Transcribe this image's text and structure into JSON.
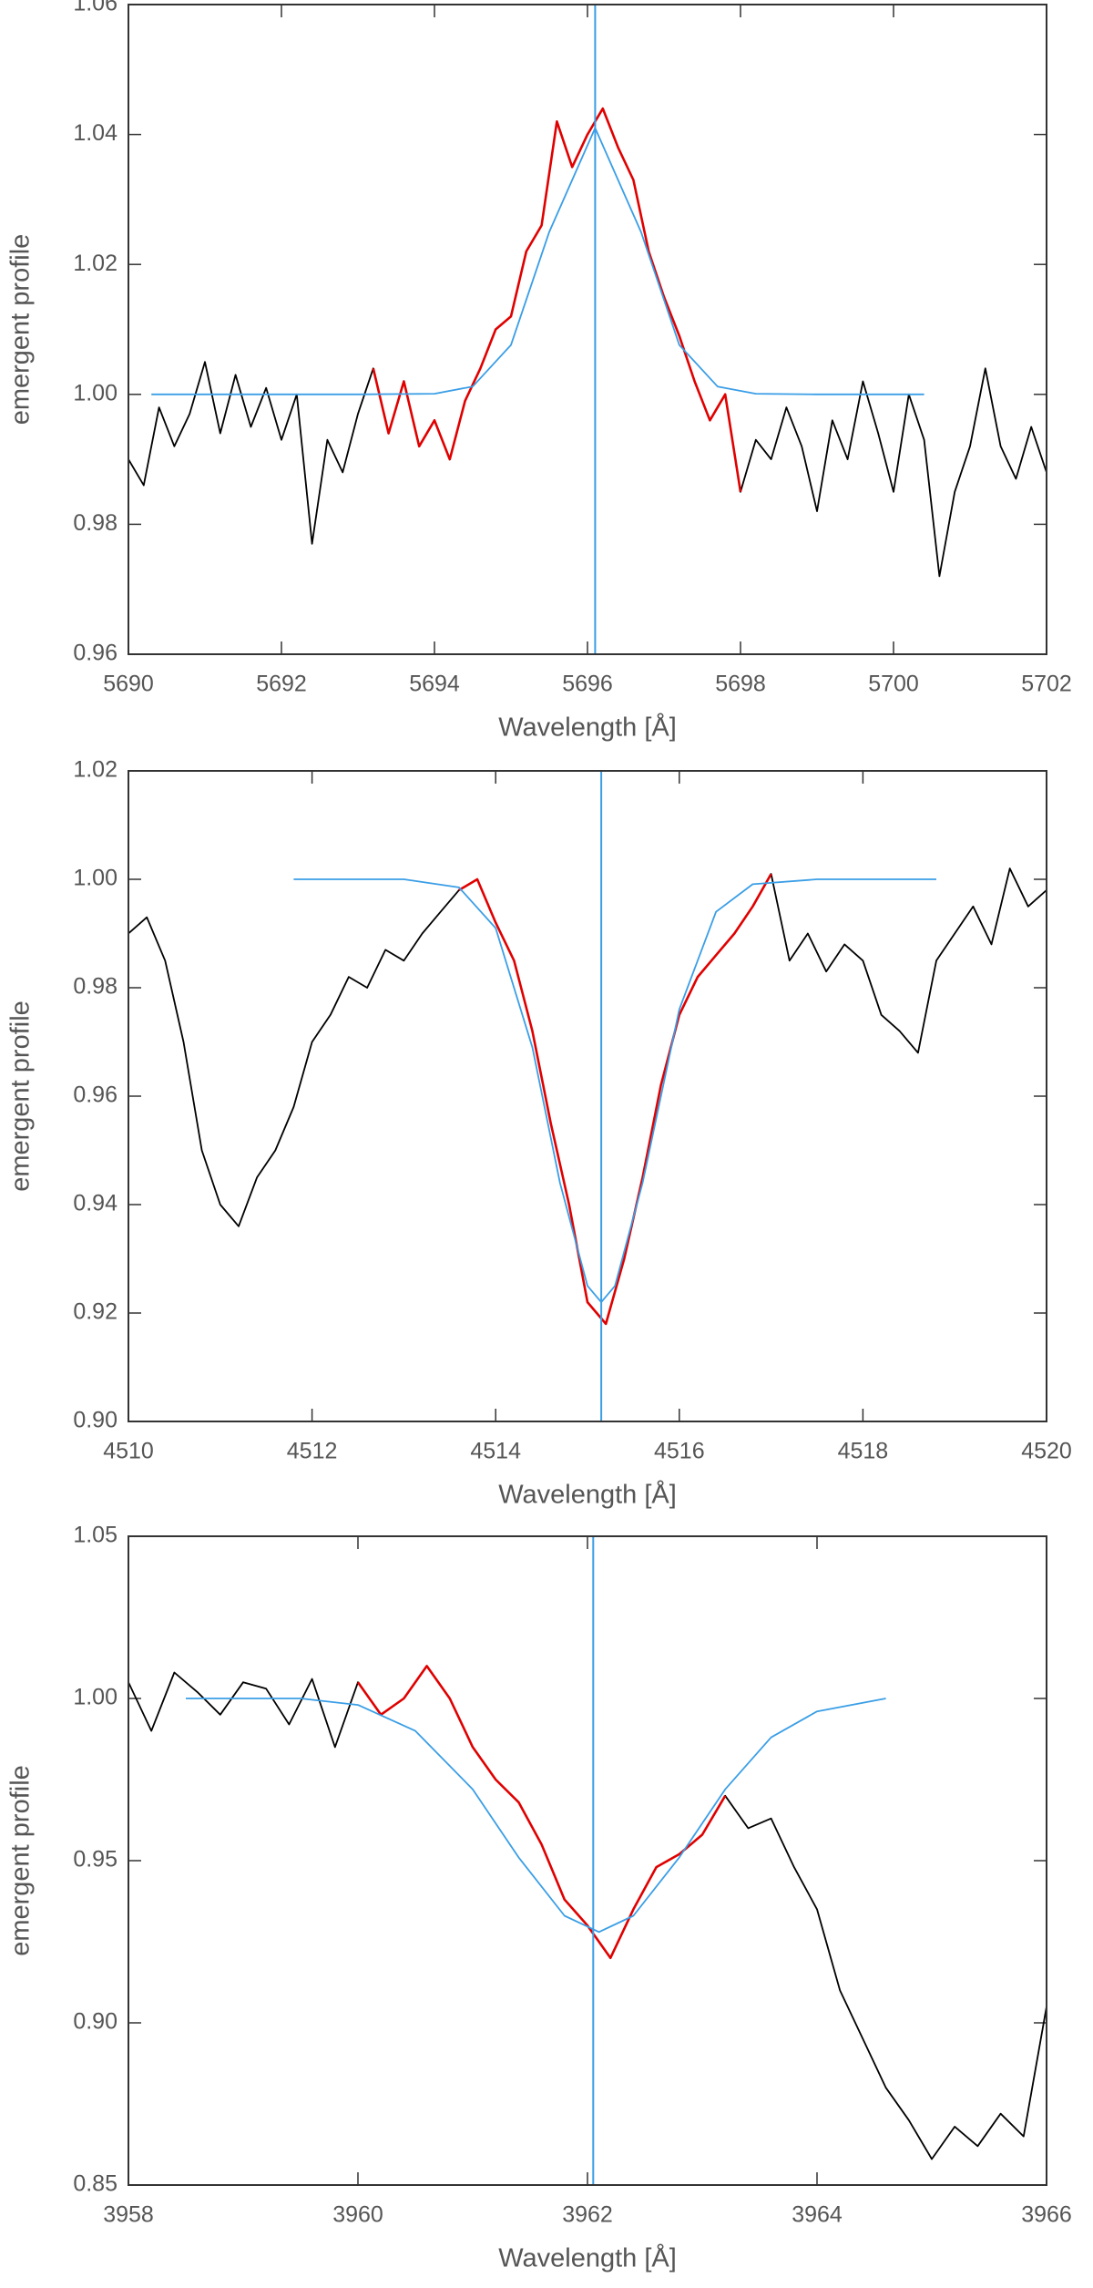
{
  "chart_data": [
    {
      "type": "line",
      "xlabel": "Wavelength [Å]",
      "ylabel": "emergent profile",
      "xlim": [
        5690,
        5702
      ],
      "xticks": [
        5690,
        5692,
        5694,
        5696,
        5698,
        5700,
        5702
      ],
      "ylim": [
        0.96,
        1.06
      ],
      "yticks": [
        0.96,
        0.98,
        {
          "value": 1.0,
          "label": "1.00"
        },
        1.02,
        1.04,
        1.06
      ],
      "vline": {
        "x": 5696.1,
        "color": "#3a9ee6"
      },
      "series": [
        {
          "color": "#000000",
          "x": [
            5690.0,
            5690.2,
            5690.4,
            5690.6,
            5690.8,
            5691.0,
            5691.2,
            5691.4,
            5691.6,
            5691.8,
            5692.0,
            5692.2,
            5692.4,
            5692.6,
            5692.8,
            5693.0,
            5693.2,
            5693.4,
            5693.6,
            5693.8,
            5694.0,
            5694.2,
            5694.4,
            5694.6,
            5694.8,
            5695.0,
            5695.2,
            5695.4,
            5695.6,
            5695.8,
            5696.0,
            5696.2,
            5696.4,
            5696.6,
            5696.8,
            5697.0,
            5697.2,
            5697.4,
            5697.6,
            5697.8,
            5698.0,
            5698.2,
            5698.4,
            5698.6,
            5698.8,
            5699.0,
            5699.2,
            5699.4,
            5699.6,
            5699.8,
            5700.0,
            5700.2,
            5700.4,
            5700.6,
            5700.8,
            5701.0,
            5701.2,
            5701.4,
            5701.6,
            5701.8,
            5702.0
          ],
          "values": [
            0.99,
            0.986,
            0.998,
            0.992,
            0.997,
            1.005,
            0.994,
            1.003,
            0.995,
            1.001,
            0.993,
            1.0,
            0.977,
            0.993,
            0.988,
            0.997,
            1.004,
            0.994,
            1.002,
            0.992,
            0.996,
            0.99,
            0.999,
            1.004,
            1.01,
            1.012,
            1.022,
            1.026,
            1.042,
            1.035,
            1.04,
            1.044,
            1.038,
            1.033,
            1.022,
            1.015,
            1.009,
            1.002,
            0.996,
            1.0,
            0.985,
            0.993,
            0.99,
            0.998,
            0.992,
            0.982,
            0.996,
            0.99,
            1.002,
            0.994,
            0.985,
            1.0,
            0.993,
            0.972,
            0.985,
            0.992,
            1.004,
            0.992,
            0.987,
            0.995,
            0.988
          ]
        },
        {
          "color": "#e00000",
          "x": [
            5693.2,
            5693.4,
            5693.6,
            5693.8,
            5694.0,
            5694.2,
            5694.4,
            5694.6,
            5694.8,
            5695.0,
            5695.2,
            5695.4,
            5695.6,
            5695.8,
            5696.0,
            5696.2,
            5696.4,
            5696.6,
            5696.8,
            5697.0,
            5697.2,
            5697.4,
            5697.6,
            5697.8,
            5698.0
          ],
          "values": [
            1.004,
            0.994,
            1.002,
            0.992,
            0.996,
            0.99,
            0.999,
            1.004,
            1.01,
            1.012,
            1.022,
            1.026,
            1.042,
            1.035,
            1.04,
            1.044,
            1.038,
            1.033,
            1.022,
            1.015,
            1.009,
            1.002,
            0.996,
            1.0,
            0.985
          ]
        },
        {
          "color": "#3a9ee6",
          "x": [
            5690.3,
            5692.0,
            5693.0,
            5694.0,
            5694.5,
            5695.0,
            5695.5,
            5696.1,
            5696.7,
            5697.2,
            5697.7,
            5698.2,
            5699.0,
            5700.4
          ],
          "values": [
            1.0,
            1.0,
            1.0,
            1.0001,
            1.0012,
            1.0076,
            1.025,
            1.041,
            1.025,
            1.0076,
            1.0012,
            1.0001,
            1.0,
            1.0
          ]
        }
      ]
    },
    {
      "type": "line",
      "xlabel": "Wavelength [Å]",
      "ylabel": "emergent profile",
      "xlim": [
        4510,
        4520
      ],
      "xticks": [
        4510,
        4512,
        4514,
        4516,
        4518,
        4520
      ],
      "ylim": [
        0.9,
        1.02
      ],
      "yticks": [
        {
          "value": 0.9,
          "label": "0.90"
        },
        0.92,
        0.94,
        0.96,
        0.98,
        {
          "value": 1.0,
          "label": "1.00"
        },
        1.02
      ],
      "vline": {
        "x": 4515.15,
        "color": "#3a9ee6"
      },
      "series": [
        {
          "color": "#000000",
          "x": [
            4510.0,
            4510.2,
            4510.4,
            4510.6,
            4510.8,
            4511.0,
            4511.2,
            4511.4,
            4511.6,
            4511.8,
            4512.0,
            4512.2,
            4512.4,
            4512.6,
            4512.8,
            4513.0,
            4513.2,
            4513.4,
            4513.6,
            4513.8,
            4514.0,
            4514.2,
            4514.4,
            4514.6,
            4514.8,
            4515.0,
            4515.2,
            4515.4,
            4515.6,
            4515.8,
            4516.0,
            4516.2,
            4516.4,
            4516.6,
            4516.8,
            4517.0,
            4517.2,
            4517.4,
            4517.6,
            4517.8,
            4518.0,
            4518.2,
            4518.4,
            4518.6,
            4518.8,
            4519.0,
            4519.2,
            4519.4,
            4519.6,
            4519.8,
            4520.0
          ],
          "values": [
            0.99,
            0.993,
            0.985,
            0.97,
            0.95,
            0.94,
            0.936,
            0.945,
            0.95,
            0.958,
            0.97,
            0.975,
            0.982,
            0.98,
            0.987,
            0.985,
            0.99,
            0.994,
            0.998,
            1.0,
            0.992,
            0.985,
            0.972,
            0.955,
            0.94,
            0.922,
            0.918,
            0.93,
            0.945,
            0.962,
            0.975,
            0.982,
            0.986,
            0.99,
            0.995,
            1.001,
            0.985,
            0.99,
            0.983,
            0.988,
            0.985,
            0.975,
            0.972,
            0.968,
            0.985,
            0.99,
            0.995,
            0.988,
            1.002,
            0.995,
            0.998
          ]
        },
        {
          "color": "#e00000",
          "x": [
            4513.6,
            4513.8,
            4514.0,
            4514.2,
            4514.4,
            4514.6,
            4514.8,
            4515.0,
            4515.2,
            4515.4,
            4515.6,
            4515.8,
            4516.0,
            4516.2,
            4516.4,
            4516.6,
            4516.8,
            4517.0
          ],
          "values": [
            0.998,
            1.0,
            0.992,
            0.985,
            0.972,
            0.955,
            0.94,
            0.922,
            0.918,
            0.93,
            0.945,
            0.962,
            0.975,
            0.982,
            0.986,
            0.99,
            0.995,
            1.001
          ]
        },
        {
          "color": "#3a9ee6",
          "x": [
            4511.8,
            4513.0,
            4513.6,
            4514.0,
            4514.4,
            4514.7,
            4515.0,
            4515.15,
            4515.3,
            4515.6,
            4516.0,
            4516.4,
            4516.8,
            4517.5,
            4518.8
          ],
          "values": [
            1.0,
            1.0,
            0.9985,
            0.991,
            0.969,
            0.944,
            0.925,
            0.922,
            0.925,
            0.944,
            0.976,
            0.994,
            0.9991,
            1.0,
            1.0
          ]
        }
      ]
    },
    {
      "type": "line",
      "xlabel": "Wavelength [Å]",
      "ylabel": "emergent profile",
      "xlim": [
        3958,
        3966
      ],
      "xticks": [
        3958,
        3960,
        3962,
        3964,
        3966
      ],
      "ylim": [
        0.85,
        1.05
      ],
      "yticks": [
        0.85,
        {
          "value": 0.9,
          "label": "0.90"
        },
        0.95,
        {
          "value": 1.0,
          "label": "1.00"
        },
        1.05
      ],
      "vline": {
        "x": 3962.05,
        "color": "#3a9ee6"
      },
      "series": [
        {
          "color": "#000000",
          "x": [
            3958.0,
            3958.2,
            3958.4,
            3958.6,
            3958.8,
            3959.0,
            3959.2,
            3959.4,
            3959.6,
            3959.8,
            3960.0,
            3960.2,
            3960.4,
            3960.6,
            3960.8,
            3961.0,
            3961.2,
            3961.4,
            3961.6,
            3961.8,
            3962.0,
            3962.2,
            3962.4,
            3962.6,
            3962.8,
            3963.0,
            3963.2,
            3963.4,
            3963.6,
            3963.8,
            3964.0,
            3964.2,
            3964.4,
            3964.6,
            3964.8,
            3965.0,
            3965.2,
            3965.4,
            3965.6,
            3965.8,
            3966.0
          ],
          "values": [
            1.005,
            0.99,
            1.008,
            1.002,
            0.995,
            1.005,
            1.003,
            0.992,
            1.006,
            0.985,
            1.005,
            0.995,
            1.0,
            1.01,
            1.0,
            0.985,
            0.975,
            0.968,
            0.955,
            0.938,
            0.93,
            0.92,
            0.935,
            0.948,
            0.952,
            0.958,
            0.97,
            0.96,
            0.963,
            0.948,
            0.935,
            0.91,
            0.895,
            0.88,
            0.87,
            0.858,
            0.868,
            0.862,
            0.872,
            0.865,
            0.905
          ]
        },
        {
          "color": "#e00000",
          "x": [
            3960.0,
            3960.2,
            3960.4,
            3960.6,
            3960.8,
            3961.0,
            3961.2,
            3961.4,
            3961.6,
            3961.8,
            3962.0,
            3962.2,
            3962.4,
            3962.6,
            3962.8,
            3963.0,
            3963.2
          ],
          "values": [
            1.005,
            0.995,
            1.0,
            1.01,
            1.0,
            0.985,
            0.975,
            0.968,
            0.955,
            0.938,
            0.93,
            0.92,
            0.935,
            0.948,
            0.952,
            0.958,
            0.97
          ]
        },
        {
          "color": "#3a9ee6",
          "x": [
            3958.5,
            3959.5,
            3960.0,
            3960.5,
            3961.0,
            3961.4,
            3961.8,
            3962.1,
            3962.4,
            3962.8,
            3963.2,
            3963.6,
            3964.0,
            3964.6
          ],
          "values": [
            1.0,
            1.0,
            0.998,
            0.99,
            0.972,
            0.951,
            0.933,
            0.928,
            0.933,
            0.951,
            0.972,
            0.988,
            0.996,
            1.0
          ]
        }
      ]
    }
  ]
}
